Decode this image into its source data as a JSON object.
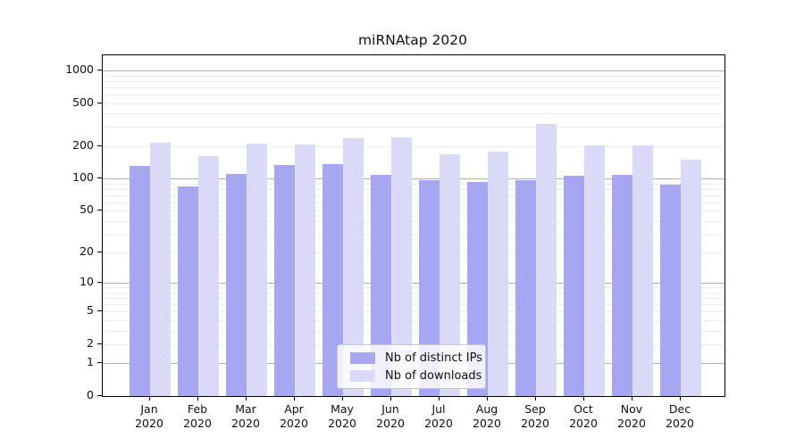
{
  "title": "miRNAtap 2020",
  "legend": {
    "entries": [
      {
        "label": "Nb of distinct IPs",
        "color": "#a6a6f2"
      },
      {
        "label": "Nb of downloads",
        "color": "#d9d9f8"
      }
    ]
  },
  "chart_data": {
    "type": "bar",
    "title": "miRNAtap 2020",
    "categories": [
      "Jan",
      "Feb",
      "Mar",
      "Apr",
      "May",
      "Jun",
      "Jul",
      "Aug",
      "Sep",
      "Oct",
      "Nov",
      "Dec"
    ],
    "tick_year": "2020",
    "series": [
      {
        "name": "Nb of distinct IPs",
        "color": "#a6a6f2",
        "values": [
          130,
          85,
          110,
          134,
          137,
          108,
          97,
          93,
          96,
          107,
          109,
          88
        ]
      },
      {
        "name": "Nb of downloads",
        "color": "#d9d9f8",
        "values": [
          215,
          162,
          211,
          207,
          237,
          241,
          168,
          178,
          320,
          203,
          203,
          150
        ]
      }
    ],
    "xlabel": "",
    "ylabel": "",
    "yscale": "log1p",
    "ylim": [
      0,
      1380
    ],
    "yticks": [
      0,
      1,
      2,
      5,
      10,
      20,
      50,
      100,
      200,
      500,
      1000
    ],
    "grid": {
      "major_ticks": [
        1,
        10,
        100,
        1000
      ],
      "minor_bases": [
        2,
        3,
        4,
        5,
        6,
        7,
        8,
        9
      ]
    },
    "legend_position": "bottom-center"
  }
}
